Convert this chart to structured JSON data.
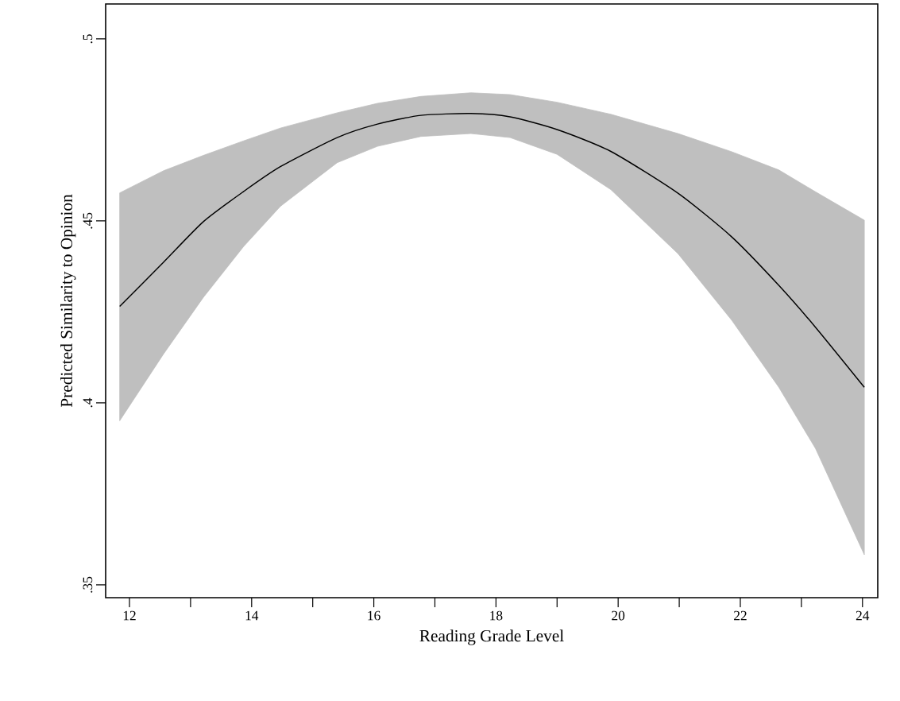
{
  "chart_data": {
    "type": "line",
    "xlabel": "Reading Grade Level",
    "ylabel": "Predicted Similarity to Opinion",
    "xlim": [
      11.61,
      24.25
    ],
    "ylim": [
      0.3465,
      0.5096
    ],
    "xticks": [
      12,
      {
        "value": 13,
        "label": null
      },
      14,
      {
        "value": 15,
        "label": null
      },
      16,
      {
        "value": 17,
        "label": null
      },
      18,
      {
        "value": 19,
        "label": null
      },
      20,
      {
        "value": 21,
        "label": null
      },
      22,
      {
        "value": 23,
        "label": null
      },
      24
    ],
    "yticks": [
      {
        "value": 0.35,
        "label": ".35"
      },
      {
        "value": 0.4,
        "label": ".4"
      },
      {
        "value": 0.45,
        "label": ".45"
      },
      {
        "value": 0.5,
        "label": ".5"
      }
    ],
    "grid": false,
    "marker": "none",
    "line_style": "solid",
    "x": [
      11.84,
      12.56,
      13.21,
      13.87,
      14.47,
      15.4,
      16.06,
      16.77,
      17.59,
      18.23,
      19.0,
      19.88,
      20.98,
      21.86,
      22.63,
      23.23,
      24.03
    ],
    "series": [
      {
        "color": "#000000",
        "values": [
          0.4265,
          0.4387,
          0.4498,
          0.4581,
          0.4649,
          0.4729,
          0.4766,
          0.479,
          0.4795,
          0.4786,
          0.4751,
          0.4691,
          0.4576,
          0.4456,
          0.4323,
          0.4208,
          0.4043
        ],
        "upper": [
          0.4577,
          0.4638,
          0.468,
          0.472,
          0.4755,
          0.4797,
          0.4823,
          0.4842,
          0.4852,
          0.4847,
          0.4826,
          0.4793,
          0.474,
          0.469,
          0.464,
          0.458,
          0.4502
        ],
        "lower": [
          0.3951,
          0.4135,
          0.429,
          0.443,
          0.454,
          0.466,
          0.4705,
          0.4732,
          0.474,
          0.4729,
          0.4683,
          0.4586,
          0.441,
          0.4227,
          0.4043,
          0.3875,
          0.3583
        ]
      }
    ]
  }
}
